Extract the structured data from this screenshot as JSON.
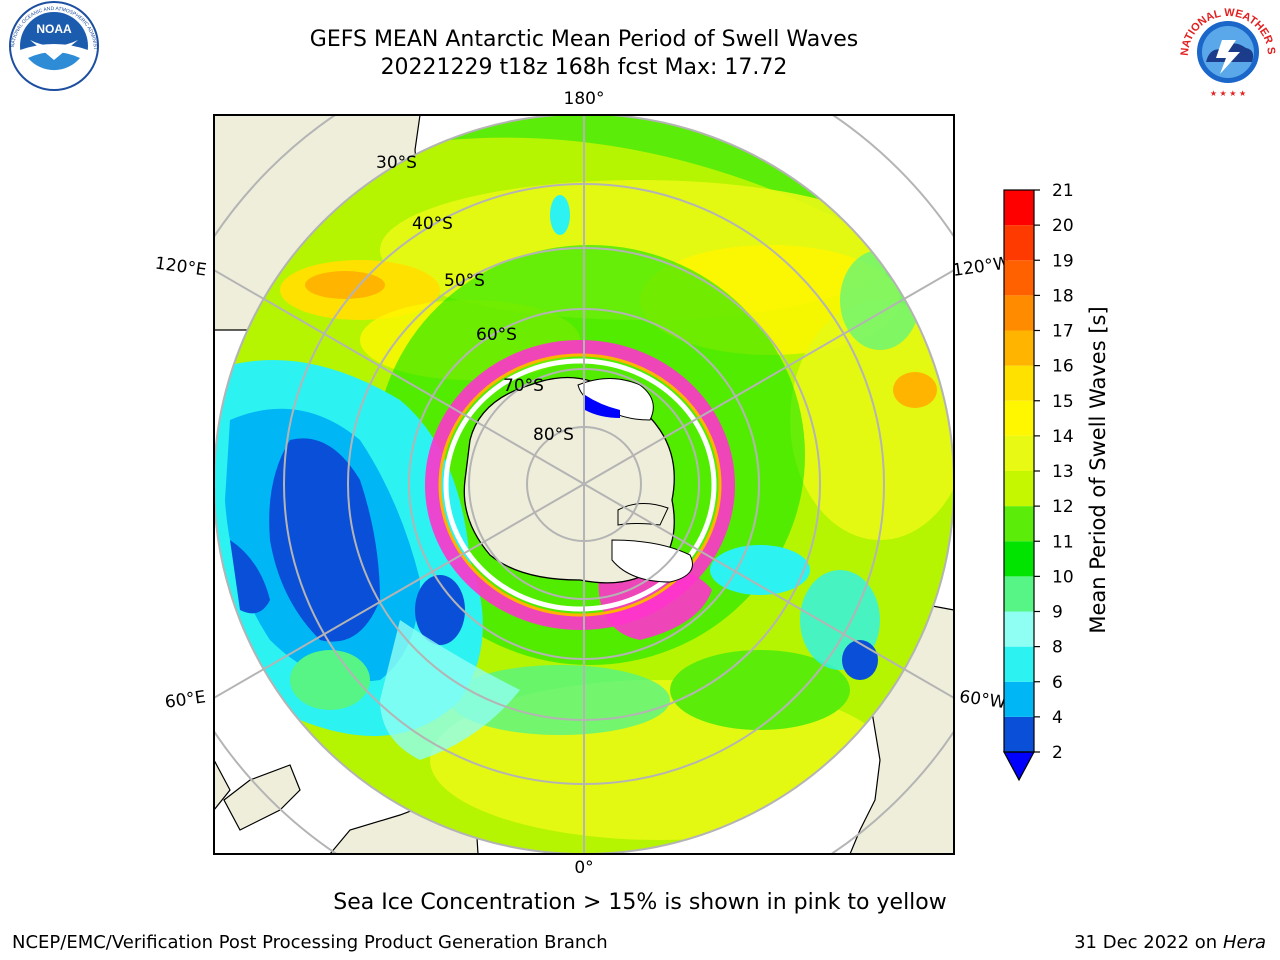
{
  "header": {
    "title_line1": "GEFS MEAN Antarctic Mean Period of Swell Waves",
    "title_line2": "20221229 t18z 168h fcst   Max: 17.72"
  },
  "logos": {
    "left": {
      "text": "NOAA",
      "ring_text": "NATIONAL OCEANIC AND ATMOSPHERIC ADMINISTRATION · U.S. DEPARTMENT OF COMMERCE"
    },
    "right": {
      "ring_text": "NATIONAL WEATHER SERVICE"
    }
  },
  "chart_data": {
    "type": "heatmap",
    "projection": "south-polar-stereographic",
    "variable": "Mean Period of Swell Waves",
    "max_value": 17.72,
    "longitude_labels": [
      "180°",
      "120°E",
      "120°W",
      "60°E",
      "60°W",
      "0°"
    ],
    "latitude_labels": [
      "30°S",
      "40°S",
      "50°S",
      "60°S",
      "70°S",
      "80°S"
    ],
    "colorbar": {
      "label": "Mean Period of Swell Waves [s]",
      "ticks": [
        2,
        4,
        6,
        8,
        9,
        10,
        11,
        12,
        13,
        14,
        15,
        16,
        17,
        18,
        19,
        20,
        21
      ],
      "colors": [
        "#0a4fd8",
        "#00b6f5",
        "#2df2f2",
        "#8ffff4",
        "#56f585",
        "#00e400",
        "#5cec0a",
        "#c4f700",
        "#e8fa14",
        "#fff700",
        "#ffe100",
        "#ffb400",
        "#ff8c00",
        "#ff6000",
        "#ff3a00",
        "#ff0000"
      ],
      "extend_color": "#0000ff"
    },
    "colors": {
      "land": "#efeedb",
      "sea_ice": "#ff33cc",
      "ice_shelf": "#ffffff",
      "gridline": "#b4b4b4"
    }
  },
  "footer": {
    "note": "Sea Ice Concentration > 15% is shown in pink to yellow",
    "credit": "NCEP/EMC/Verification Post Processing Product Generation Branch",
    "date": "31 Dec 2022 on",
    "host": "Hera"
  }
}
